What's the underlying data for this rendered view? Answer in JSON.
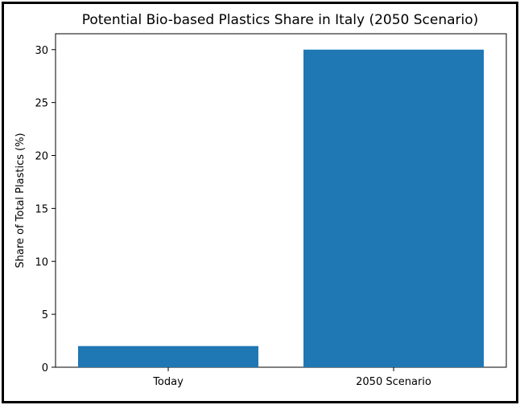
{
  "chart_data": {
    "type": "bar",
    "title": "Potential Bio-based Plastics Share in Italy (2050 Scenario)",
    "xlabel": "",
    "ylabel": "Share of Total Plastics (%)",
    "categories": [
      "Today",
      "2050 Scenario"
    ],
    "values": [
      2,
      30
    ],
    "ylim": [
      0,
      31.5
    ],
    "yticks": [
      0,
      5,
      10,
      15,
      20,
      25,
      30
    ],
    "grid": false,
    "bar_color": "#1f77b4"
  }
}
